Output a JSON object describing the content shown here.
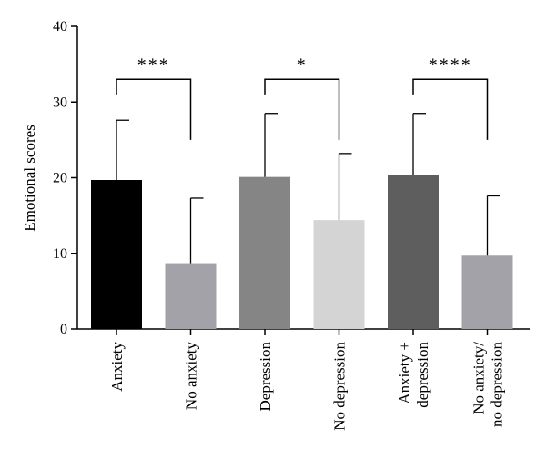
{
  "chart_data": {
    "type": "bar",
    "ylabel": "Emotional scores",
    "ylim": [
      0,
      40
    ],
    "yticks": [
      0,
      10,
      20,
      30,
      40
    ],
    "categories": [
      [
        "Anxiety"
      ],
      [
        "No anxiety"
      ],
      [
        "Depression"
      ],
      [
        "No depression"
      ],
      [
        "Anxiety +",
        "depression"
      ],
      [
        "No anxiety/",
        "no depression"
      ]
    ],
    "values": [
      19.7,
      8.7,
      20.1,
      14.4,
      20.4,
      9.7
    ],
    "errors": [
      7.9,
      8.6,
      8.4,
      8.8,
      8.1,
      7.9
    ],
    "colors": [
      "#000000",
      "#a3a2a8",
      "#858585",
      "#d4d4d4",
      "#5e5e5e",
      "#a3a2a8"
    ],
    "significance": [
      {
        "from": 0,
        "to": 1,
        "label": "***",
        "y": 33,
        "drop_left": 31,
        "drop_right": 25
      },
      {
        "from": 2,
        "to": 3,
        "label": "*",
        "y": 33,
        "drop_left": 31,
        "drop_right": 25
      },
      {
        "from": 4,
        "to": 5,
        "label": "****",
        "y": 33,
        "drop_left": 31,
        "drop_right": 25
      }
    ]
  }
}
